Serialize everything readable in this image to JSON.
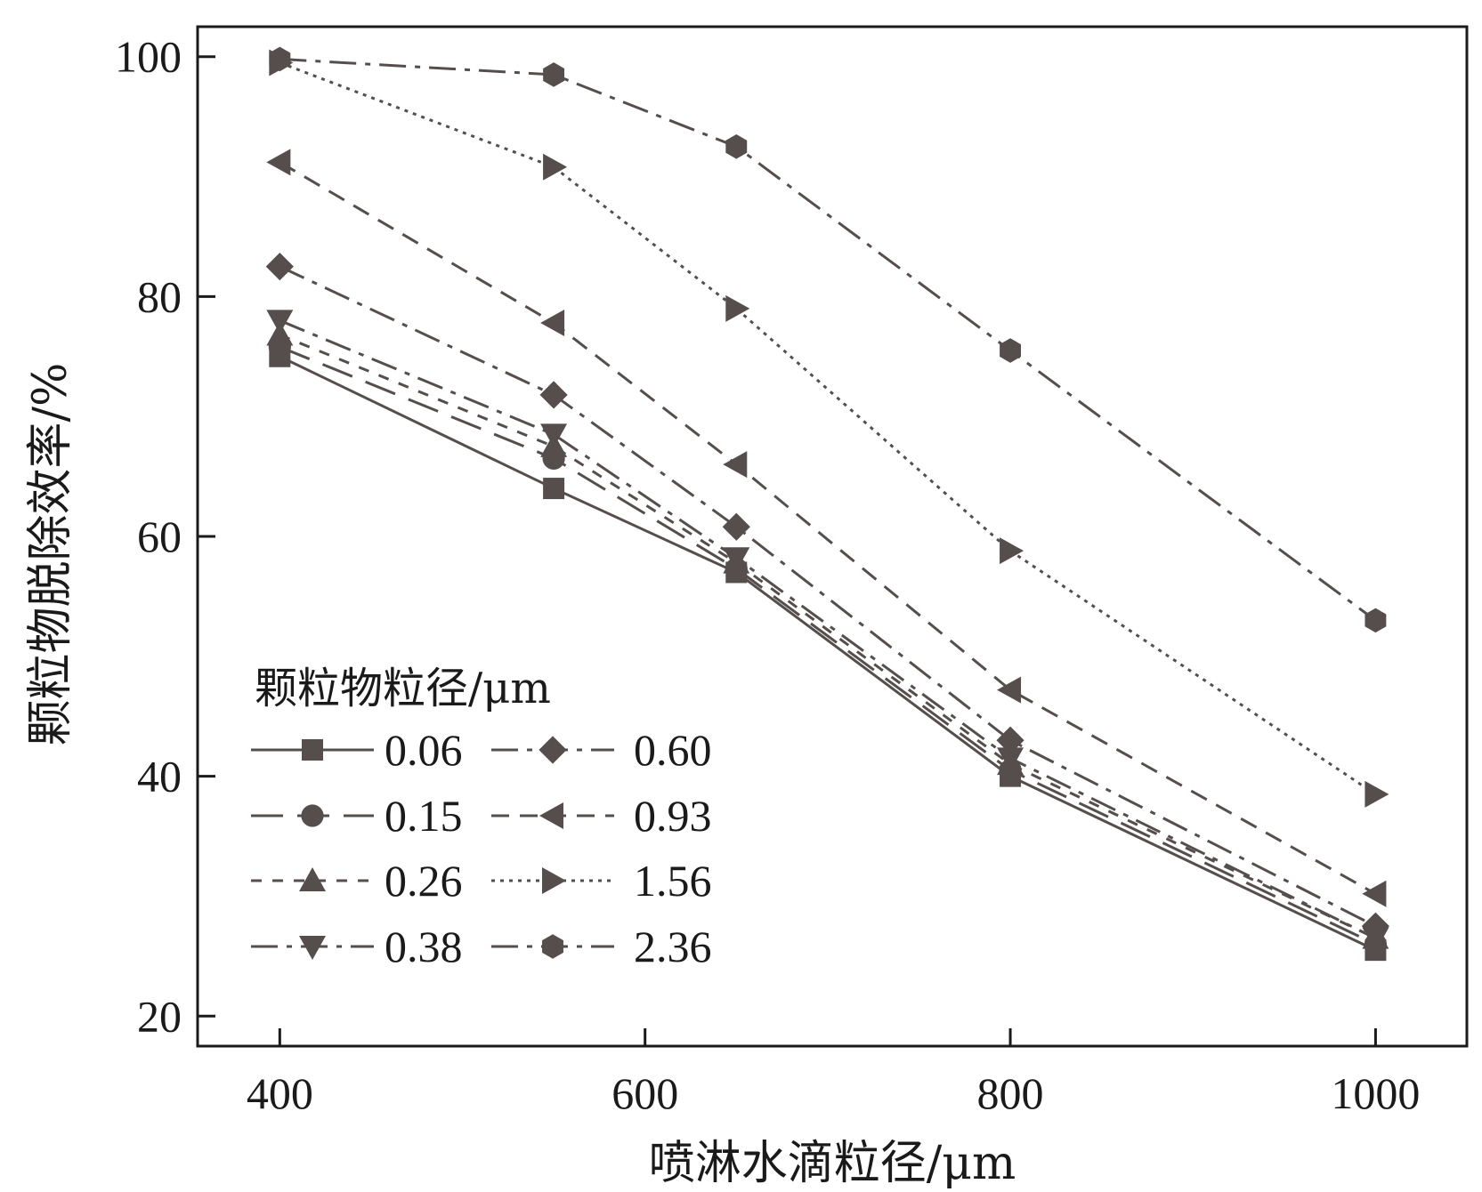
{
  "chart_data": {
    "type": "line",
    "title": "",
    "xlabel": "喷淋水滴粒径/μm",
    "ylabel": "颗粒物脱除效率/%",
    "xlim": [
      355,
      1050
    ],
    "ylim": [
      17.5,
      102.5
    ],
    "xticks": [
      400,
      600,
      800,
      1000
    ],
    "yticks": [
      20,
      40,
      60,
      80,
      100
    ],
    "grid": false,
    "legend_title": "颗粒物粒径/μm",
    "legend_position": "lower-left",
    "x": [
      400,
      550,
      650,
      800,
      1000
    ],
    "series": [
      {
        "name": "0.06",
        "marker": "square",
        "dash": "solid",
        "values": [
          75.0,
          64.0,
          57.0,
          40.0,
          25.5
        ]
      },
      {
        "name": "0.15",
        "marker": "circle",
        "dash": "long-dash",
        "values": [
          75.8,
          66.5,
          57.3,
          40.5,
          26.0
        ]
      },
      {
        "name": "0.26",
        "marker": "triangle-up",
        "dash": "short-dash",
        "values": [
          76.8,
          67.5,
          57.8,
          41.0,
          26.5
        ]
      },
      {
        "name": "0.38",
        "marker": "triangle-down",
        "dash": "dash-dot",
        "values": [
          78.0,
          68.5,
          58.2,
          41.5,
          26.5
        ]
      },
      {
        "name": "0.60",
        "marker": "diamond",
        "dash": "dash-dot",
        "values": [
          82.5,
          71.8,
          60.8,
          43.0,
          27.5
        ]
      },
      {
        "name": "0.93",
        "marker": "triangle-left",
        "dash": "dash",
        "values": [
          91.2,
          77.8,
          66.0,
          47.2,
          30.2
        ]
      },
      {
        "name": "1.56",
        "marker": "triangle-right",
        "dash": "dotted",
        "values": [
          99.5,
          90.8,
          79.0,
          58.8,
          38.5
        ]
      },
      {
        "name": "2.36",
        "marker": "hexagon",
        "dash": "dash-dot",
        "values": [
          99.8,
          98.5,
          92.5,
          75.5,
          53.0
        ]
      }
    ],
    "colors": {
      "line": "#554e4c",
      "axis": "#1a1a1a"
    }
  }
}
